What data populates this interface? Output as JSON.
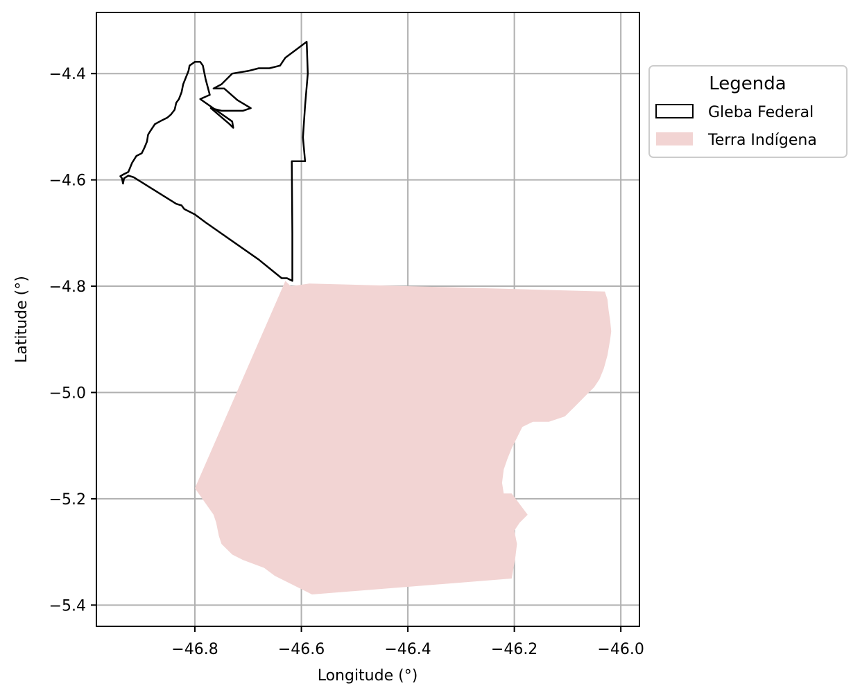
{
  "chart_data": {
    "type": "map",
    "xlabel": "Longitude (°)",
    "ylabel": "Latitude (°)",
    "xlim": [
      -46.985,
      -45.965
    ],
    "ylim": [
      -5.44,
      -4.285
    ],
    "xticks": [
      {
        "value": -46.8,
        "label": "−46.8"
      },
      {
        "value": -46.6,
        "label": "−46.6"
      },
      {
        "value": -46.4,
        "label": "−46.4"
      },
      {
        "value": -46.2,
        "label": "−46.2"
      },
      {
        "value": -46.0,
        "label": "−46.0"
      }
    ],
    "yticks": [
      {
        "value": -4.4,
        "label": "−4.4"
      },
      {
        "value": -4.6,
        "label": "−4.6"
      },
      {
        "value": -4.8,
        "label": "−4.8"
      },
      {
        "value": -5.0,
        "label": "−5.0"
      },
      {
        "value": -5.2,
        "label": "−5.2"
      },
      {
        "value": -5.4,
        "label": "−5.4"
      }
    ],
    "grid": true,
    "legend": {
      "title": "Legenda",
      "placement": "outside-upper-right",
      "entries": [
        {
          "label": "Gleba Federal",
          "style": "outline",
          "color": "#000000"
        },
        {
          "label": "Terra Indígena",
          "style": "fill",
          "color": "#f2d4d3"
        }
      ]
    },
    "layers": [
      {
        "name": "Gleba Federal",
        "style": "outline",
        "stroke": "#000000",
        "fill": "none",
        "coordinates": [
          [
            -46.59,
            -4.34
          ],
          [
            -46.588,
            -4.4
          ],
          [
            -46.593,
            -4.46
          ],
          [
            -46.597,
            -4.52
          ],
          [
            -46.593,
            -4.565
          ],
          [
            -46.618,
            -4.565
          ],
          [
            -46.617,
            -4.7
          ],
          [
            -46.617,
            -4.79
          ],
          [
            -46.627,
            -4.785
          ],
          [
            -46.637,
            -4.785
          ],
          [
            -46.68,
            -4.75
          ],
          [
            -46.78,
            -4.68
          ],
          [
            -46.8,
            -4.665
          ],
          [
            -46.82,
            -4.655
          ],
          [
            -46.825,
            -4.648
          ],
          [
            -46.835,
            -4.645
          ],
          [
            -46.915,
            -4.595
          ],
          [
            -46.925,
            -4.592
          ],
          [
            -46.933,
            -4.597
          ],
          [
            -46.935,
            -4.607
          ],
          [
            -46.937,
            -4.597
          ],
          [
            -46.94,
            -4.593
          ],
          [
            -46.935,
            -4.59
          ],
          [
            -46.925,
            -4.585
          ],
          [
            -46.918,
            -4.568
          ],
          [
            -46.91,
            -4.555
          ],
          [
            -46.9,
            -4.55
          ],
          [
            -46.895,
            -4.54
          ],
          [
            -46.89,
            -4.528
          ],
          [
            -46.888,
            -4.515
          ],
          [
            -46.885,
            -4.51
          ],
          [
            -46.875,
            -4.495
          ],
          [
            -46.862,
            -4.488
          ],
          [
            -46.852,
            -4.483
          ],
          [
            -46.845,
            -4.477
          ],
          [
            -46.838,
            -4.468
          ],
          [
            -46.835,
            -4.455
          ],
          [
            -46.83,
            -4.448
          ],
          [
            -46.825,
            -4.435
          ],
          [
            -46.822,
            -4.42
          ],
          [
            -46.818,
            -4.41
          ],
          [
            -46.812,
            -4.395
          ],
          [
            -46.81,
            -4.385
          ],
          [
            -46.8,
            -4.378
          ],
          [
            -46.79,
            -4.378
          ],
          [
            -46.785,
            -4.385
          ],
          [
            -46.78,
            -4.41
          ],
          [
            -46.772,
            -4.44
          ],
          [
            -46.79,
            -4.448
          ],
          [
            -46.73,
            -4.49
          ],
          [
            -46.728,
            -4.502
          ],
          [
            -46.735,
            -4.495
          ],
          [
            -46.77,
            -4.465
          ],
          [
            -46.75,
            -4.47
          ],
          [
            -46.71,
            -4.47
          ],
          [
            -46.695,
            -4.465
          ],
          [
            -46.72,
            -4.45
          ],
          [
            -46.745,
            -4.428
          ],
          [
            -46.765,
            -4.428
          ],
          [
            -46.75,
            -4.42
          ],
          [
            -46.73,
            -4.4
          ],
          [
            -46.7,
            -4.395
          ],
          [
            -46.68,
            -4.39
          ],
          [
            -46.66,
            -4.39
          ],
          [
            -46.64,
            -4.385
          ],
          [
            -46.63,
            -4.37
          ],
          [
            -46.61,
            -4.355
          ],
          [
            -46.59,
            -4.34
          ]
        ]
      },
      {
        "name": "Terra Indígena",
        "style": "fill",
        "stroke": "none",
        "fill": "#f2d4d3",
        "coordinates": [
          [
            -46.63,
            -4.79
          ],
          [
            -46.62,
            -4.8
          ],
          [
            -46.585,
            -4.795
          ],
          [
            -46.03,
            -4.81
          ],
          [
            -46.025,
            -4.825
          ],
          [
            -46.023,
            -4.845
          ],
          [
            -46.02,
            -4.865
          ],
          [
            -46.018,
            -4.885
          ],
          [
            -46.02,
            -4.9
          ],
          [
            -46.025,
            -4.93
          ],
          [
            -46.032,
            -4.955
          ],
          [
            -46.04,
            -4.975
          ],
          [
            -46.05,
            -4.99
          ],
          [
            -46.065,
            -5.005
          ],
          [
            -46.085,
            -5.025
          ],
          [
            -46.105,
            -5.045
          ],
          [
            -46.135,
            -5.055
          ],
          [
            -46.165,
            -5.055
          ],
          [
            -46.185,
            -5.065
          ],
          [
            -46.195,
            -5.085
          ],
          [
            -46.205,
            -5.105
          ],
          [
            -46.213,
            -5.125
          ],
          [
            -46.22,
            -5.145
          ],
          [
            -46.223,
            -5.17
          ],
          [
            -46.22,
            -5.19
          ],
          [
            -46.205,
            -5.19
          ],
          [
            -46.175,
            -5.23
          ],
          [
            -46.19,
            -5.245
          ],
          [
            -46.2,
            -5.26
          ],
          [
            -46.195,
            -5.285
          ],
          [
            -46.198,
            -5.31
          ],
          [
            -46.205,
            -5.35
          ],
          [
            -46.58,
            -5.38
          ],
          [
            -46.59,
            -5.375
          ],
          [
            -46.62,
            -5.36
          ],
          [
            -46.65,
            -5.345
          ],
          [
            -46.67,
            -5.33
          ],
          [
            -46.71,
            -5.315
          ],
          [
            -46.73,
            -5.305
          ],
          [
            -46.75,
            -5.285
          ],
          [
            -46.755,
            -5.27
          ],
          [
            -46.76,
            -5.245
          ],
          [
            -46.765,
            -5.23
          ],
          [
            -46.8,
            -5.18
          ],
          [
            -46.63,
            -4.79
          ]
        ]
      }
    ]
  }
}
